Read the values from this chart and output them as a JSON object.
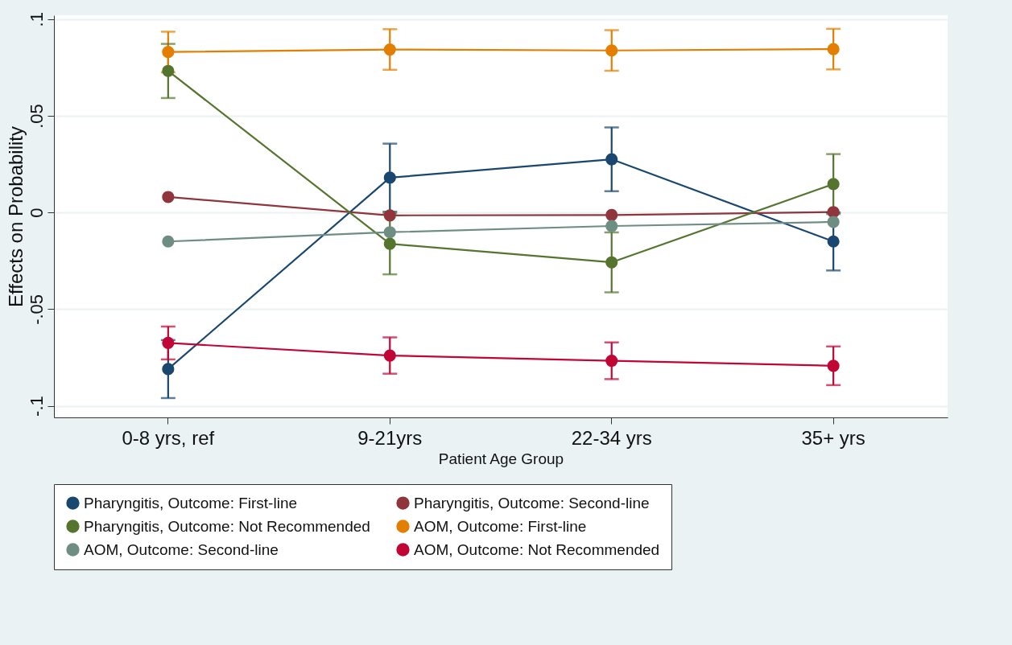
{
  "chart_data": {
    "type": "line",
    "xlabel": "Patient Age Group",
    "ylabel": "Effects on Probability",
    "categories": [
      "0-8 yrs, ref",
      "9-21yrs",
      "22-34 yrs",
      "35+ yrs"
    ],
    "ylim": [
      -0.106,
      0.102
    ],
    "yticks": [
      {
        "value": -0.1,
        "label": "-.1"
      },
      {
        "value": -0.05,
        "label": "-.05"
      },
      0,
      {
        "value": 0.05,
        "label": ".05"
      },
      {
        "value": 0.1,
        "label": ".1"
      }
    ],
    "grid": "y",
    "legend": "bottom",
    "marker": "circle",
    "series": [
      {
        "name": "Pharyngitis, Outcome: First-line",
        "color": "#1a476f",
        "values": [
          -0.081,
          0.018,
          0.0275,
          -0.015
        ],
        "errors": [
          0.015,
          0.0176,
          0.0165,
          0.015
        ]
      },
      {
        "name": "Pharyngitis, Outcome: Second-line",
        "color": "#90353b",
        "values": [
          0.008,
          -0.0015,
          -0.0013,
          0.0002
        ]
      },
      {
        "name": "Pharyngitis, Outcome: Not Recommended",
        "color": "#55752f",
        "values": [
          0.0732,
          -0.0162,
          -0.0258,
          0.0147
        ],
        "errors": [
          0.014,
          0.0158,
          0.0155,
          0.0155
        ]
      },
      {
        "name": "AOM, Outcome: First-line",
        "color": "#e37e00",
        "values": [
          0.083,
          0.0843,
          0.0838,
          0.0845
        ],
        "errors": [
          0.0105,
          0.0105,
          0.0105,
          0.0105
        ]
      },
      {
        "name": "AOM, Outcome: Second-line",
        "color": "#6e8e84",
        "values": [
          -0.015,
          -0.0102,
          -0.007,
          -0.0049
        ]
      },
      {
        "name": "AOM, Outcome: Not Recommended",
        "color": "#c10534",
        "values": [
          -0.0675,
          -0.074,
          -0.0767,
          -0.0793
        ],
        "errors": [
          0.0085,
          0.0094,
          0.0095,
          0.01
        ]
      }
    ]
  }
}
